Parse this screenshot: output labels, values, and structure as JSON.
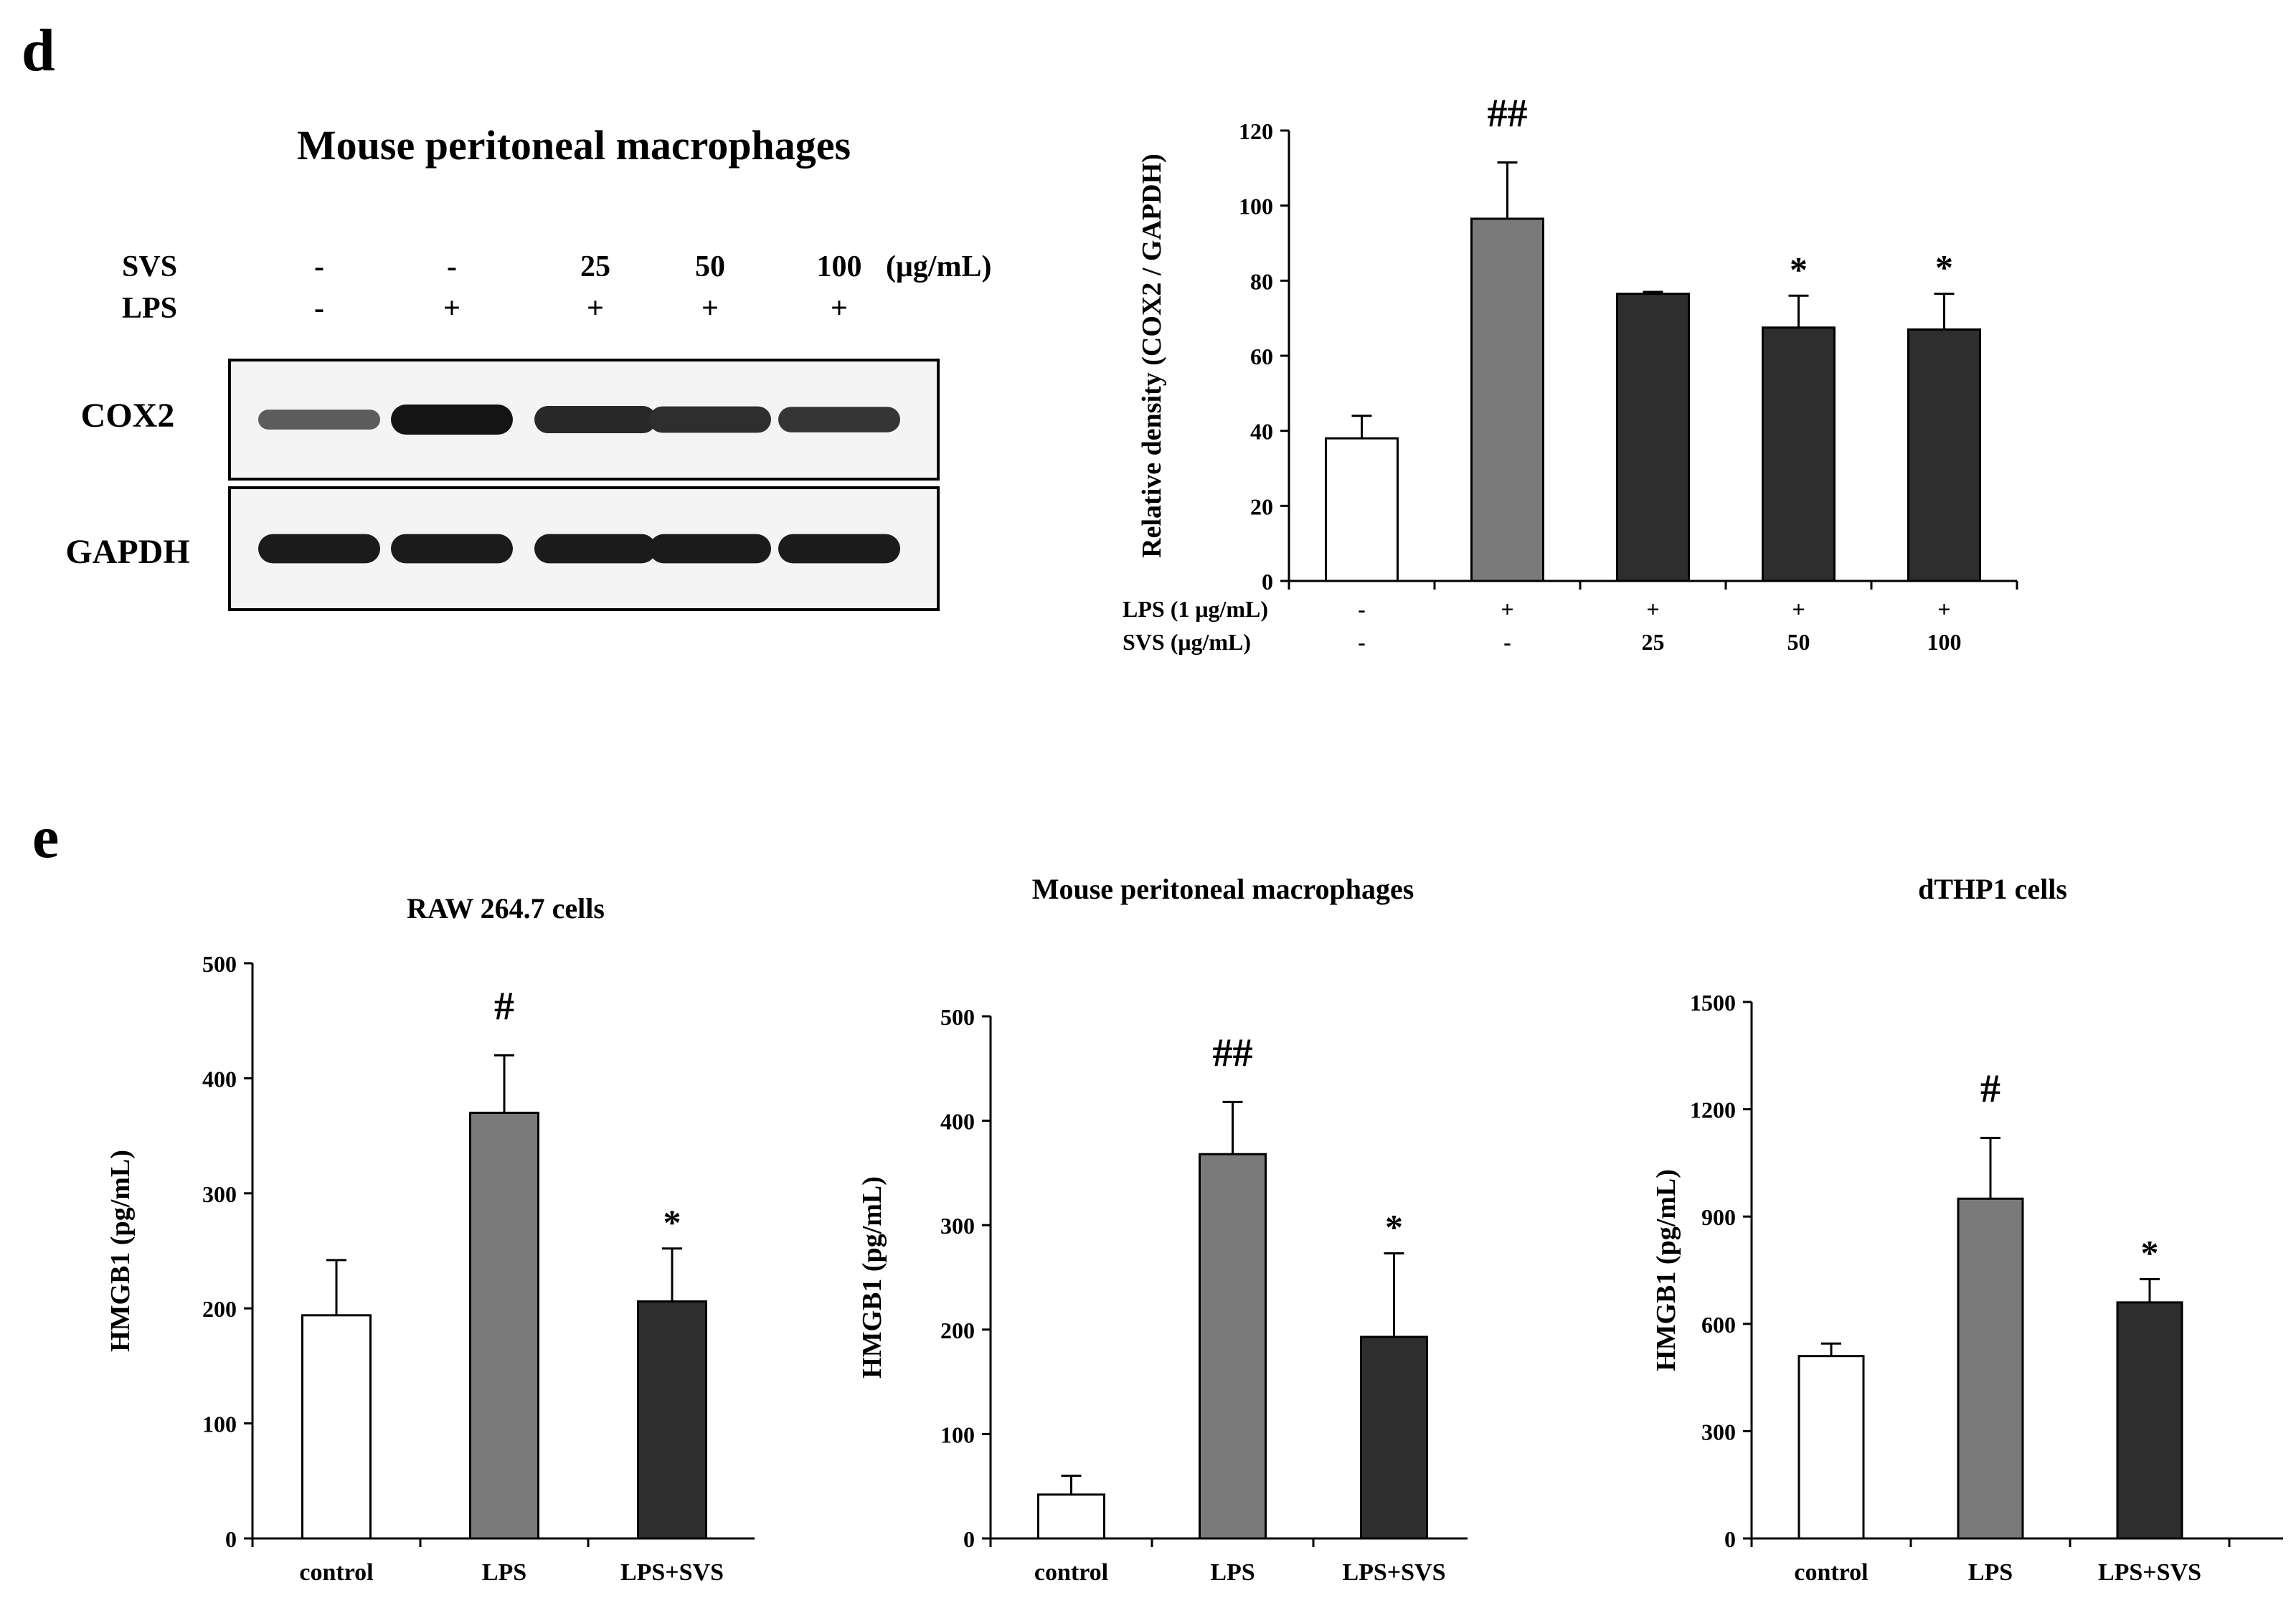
{
  "panel_d": {
    "letter": "d",
    "blot": {
      "title": "Mouse peritoneal macrophages",
      "svs_label": "SVS",
      "lps_label": "LPS",
      "unit_label": "(μg/mL)",
      "svs_values": [
        "-",
        "-",
        "25",
        "50",
        "100"
      ],
      "lps_values": [
        "-",
        "+",
        "+",
        "+",
        "+"
      ],
      "bands": [
        {
          "label": "COX2",
          "intensities": [
            0.45,
            1.0,
            0.85,
            0.8,
            0.75
          ]
        },
        {
          "label": "GAPDH",
          "intensities": [
            0.95,
            0.95,
            0.95,
            0.95,
            0.95
          ]
        }
      ]
    }
  },
  "panel_e": {
    "letter": "e"
  },
  "colors": {
    "control": "#ffffff",
    "lps": "#7a7a7a",
    "svs": "#2e2e2e",
    "axis": "#000000"
  },
  "chart_data": [
    {
      "id": "cox2",
      "type": "bar",
      "title": "",
      "ylabel": "Relative density (COX2 / GAPDH)",
      "ylim": [
        0,
        120
      ],
      "yticks": [
        "0",
        "20",
        "40",
        "60",
        "80",
        "100",
        "120"
      ],
      "condition_rows": [
        {
          "label": "LPS (1 μg/mL)",
          "values": [
            "-",
            "+",
            "+",
            "+",
            "+"
          ]
        },
        {
          "label": "SVS (μg/mL)",
          "values": [
            "-",
            "-",
            "25",
            "50",
            "100"
          ]
        }
      ],
      "values": [
        38,
        96.5,
        76.5,
        67.5,
        67
      ],
      "errors": [
        6,
        15,
        0.5,
        8.5,
        9.5
      ],
      "fills": [
        "control",
        "lps",
        "svs",
        "svs",
        "svs"
      ],
      "annotations": [
        "",
        "##",
        "",
        "*",
        "*"
      ]
    },
    {
      "id": "raw",
      "type": "bar",
      "title": "RAW 264.7 cells",
      "ylabel": "HMGB1 (pg/mL)",
      "ylim": [
        0,
        500
      ],
      "yticks": [
        "0",
        "100",
        "200",
        "300",
        "400",
        "500"
      ],
      "categories": [
        "control",
        "LPS",
        "LPS+SVS"
      ],
      "values": [
        194,
        370,
        206
      ],
      "errors": [
        48,
        50,
        46
      ],
      "fills": [
        "control",
        "lps",
        "svs"
      ],
      "annotations": [
        "",
        "#",
        "*"
      ]
    },
    {
      "id": "mpm",
      "type": "bar",
      "title": "Mouse peritoneal macrophages",
      "ylabel": "HMGB1 (pg/mL)",
      "ylim": [
        0,
        500
      ],
      "yticks": [
        "0",
        "100",
        "200",
        "300",
        "400",
        "500"
      ],
      "categories": [
        "control",
        "LPS",
        "LPS+SVS"
      ],
      "values": [
        42,
        368,
        193
      ],
      "errors": [
        18,
        50,
        80
      ],
      "fills": [
        "control",
        "lps",
        "svs"
      ],
      "annotations": [
        "",
        "##",
        "*"
      ]
    },
    {
      "id": "thp",
      "type": "bar",
      "title": "dTHP1 cells",
      "ylabel": "HMGB1 (pg/mL)",
      "ylim": [
        0,
        1500
      ],
      "yticks": [
        "0",
        "300",
        "600",
        "900",
        "1200",
        "1500"
      ],
      "categories": [
        "control",
        "LPS",
        "LPS+SVS"
      ],
      "values": [
        510,
        950,
        660
      ],
      "errors": [
        35,
        170,
        65
      ],
      "fills": [
        "control",
        "lps",
        "svs"
      ],
      "annotations": [
        "",
        "#",
        "*"
      ]
    }
  ]
}
